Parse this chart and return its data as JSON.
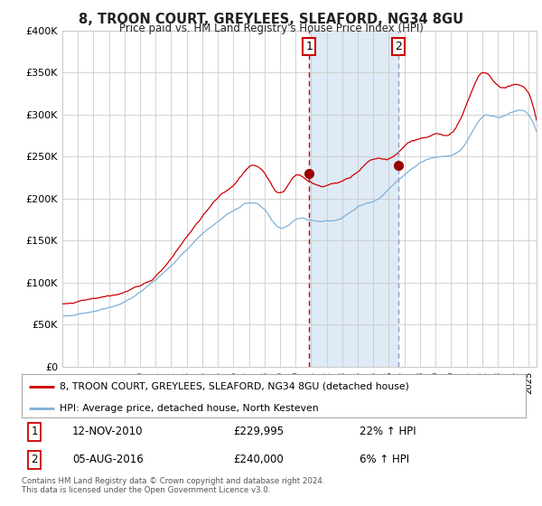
{
  "title": "8, TROON COURT, GREYLEES, SLEAFORD, NG34 8GU",
  "subtitle": "Price paid vs. HM Land Registry's House Price Index (HPI)",
  "legend_line1": "8, TROON COURT, GREYLEES, SLEAFORD, NG34 8GU (detached house)",
  "legend_line2": "HPI: Average price, detached house, North Kesteven",
  "sale1_label": "1",
  "sale2_label": "2",
  "sale1_date": "12-NOV-2010",
  "sale1_price": 229995,
  "sale1_price_str": "£229,995",
  "sale1_pct": "22% ↑ HPI",
  "sale2_date": "05-AUG-2016",
  "sale2_price": 240000,
  "sale2_price_str": "£240,000",
  "sale2_pct": "6% ↑ HPI",
  "footer": "Contains HM Land Registry data © Crown copyright and database right 2024.\nThis data is licensed under the Open Government Licence v3.0.",
  "red_color": "#cc0000",
  "blue_color": "#7fb0d8",
  "background_color": "#ffffff",
  "grid_color": "#cccccc",
  "sale1_x": 2010.87,
  "sale2_x": 2016.6,
  "shade_color": "#deeaf5",
  "ylim": [
    0,
    400000
  ],
  "xlim_start": 1995,
  "xlim_end": 2025.5,
  "yticks": [
    0,
    50000,
    100000,
    150000,
    200000,
    250000,
    300000,
    350000,
    400000
  ],
  "ytick_labels": [
    "£0",
    "£50K",
    "£100K",
    "£150K",
    "£200K",
    "£250K",
    "£300K",
    "£350K",
    "£400K"
  ]
}
